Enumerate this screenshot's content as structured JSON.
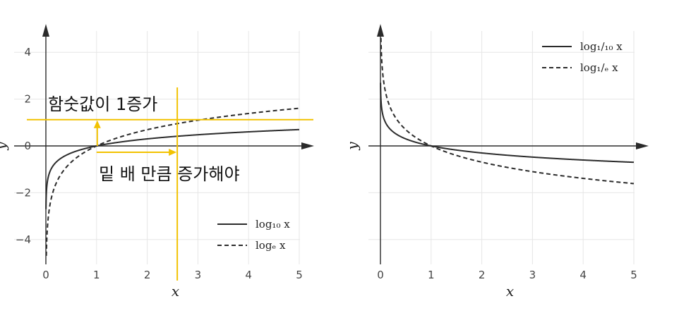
{
  "colors": {
    "curve": "#2b2b2b",
    "grid": "#e6e6e6",
    "axis": "#2b2b2b",
    "highlight": "#f2c200"
  },
  "chart_data": [
    {
      "type": "line",
      "xlabel": "x",
      "ylabel": "y",
      "xlim": [
        0,
        5
      ],
      "ylim": [
        -5,
        5
      ],
      "xticks": [
        0,
        1,
        2,
        3,
        4,
        5
      ],
      "xtick_labels": [
        "0",
        "1",
        "2",
        "3",
        "4",
        "5"
      ],
      "yticks": [
        -4,
        -2,
        0,
        2,
        4
      ],
      "ytick_labels": [
        "−4",
        "−2",
        "0",
        "2",
        "4"
      ],
      "grid": true,
      "legend_position": "bottom-right",
      "series": [
        {
          "name": "log₁₀ x",
          "function": "log10",
          "style": "solid"
        },
        {
          "name": "logₑ x",
          "function": "ln",
          "style": "dashed"
        }
      ],
      "annotations": [
        {
          "text": "함숫값이 1증가",
          "y_level": 1
        },
        {
          "text": "밑 배 만큼 증가해야",
          "x_level": 2.718
        }
      ]
    },
    {
      "type": "line",
      "xlabel": "x",
      "ylabel": "y",
      "xlim": [
        0,
        5
      ],
      "ylim": [
        -5,
        5
      ],
      "xticks": [
        0,
        1,
        2,
        3,
        4,
        5
      ],
      "xtick_labels": [
        "0",
        "1",
        "2",
        "3",
        "4",
        "5"
      ],
      "grid": true,
      "legend_position": "top-right",
      "series": [
        {
          "name": "log₁/₁₀ x",
          "function": "neglog10",
          "style": "solid"
        },
        {
          "name": "log₁/ₑ x",
          "function": "negln",
          "style": "dashed"
        }
      ]
    }
  ]
}
